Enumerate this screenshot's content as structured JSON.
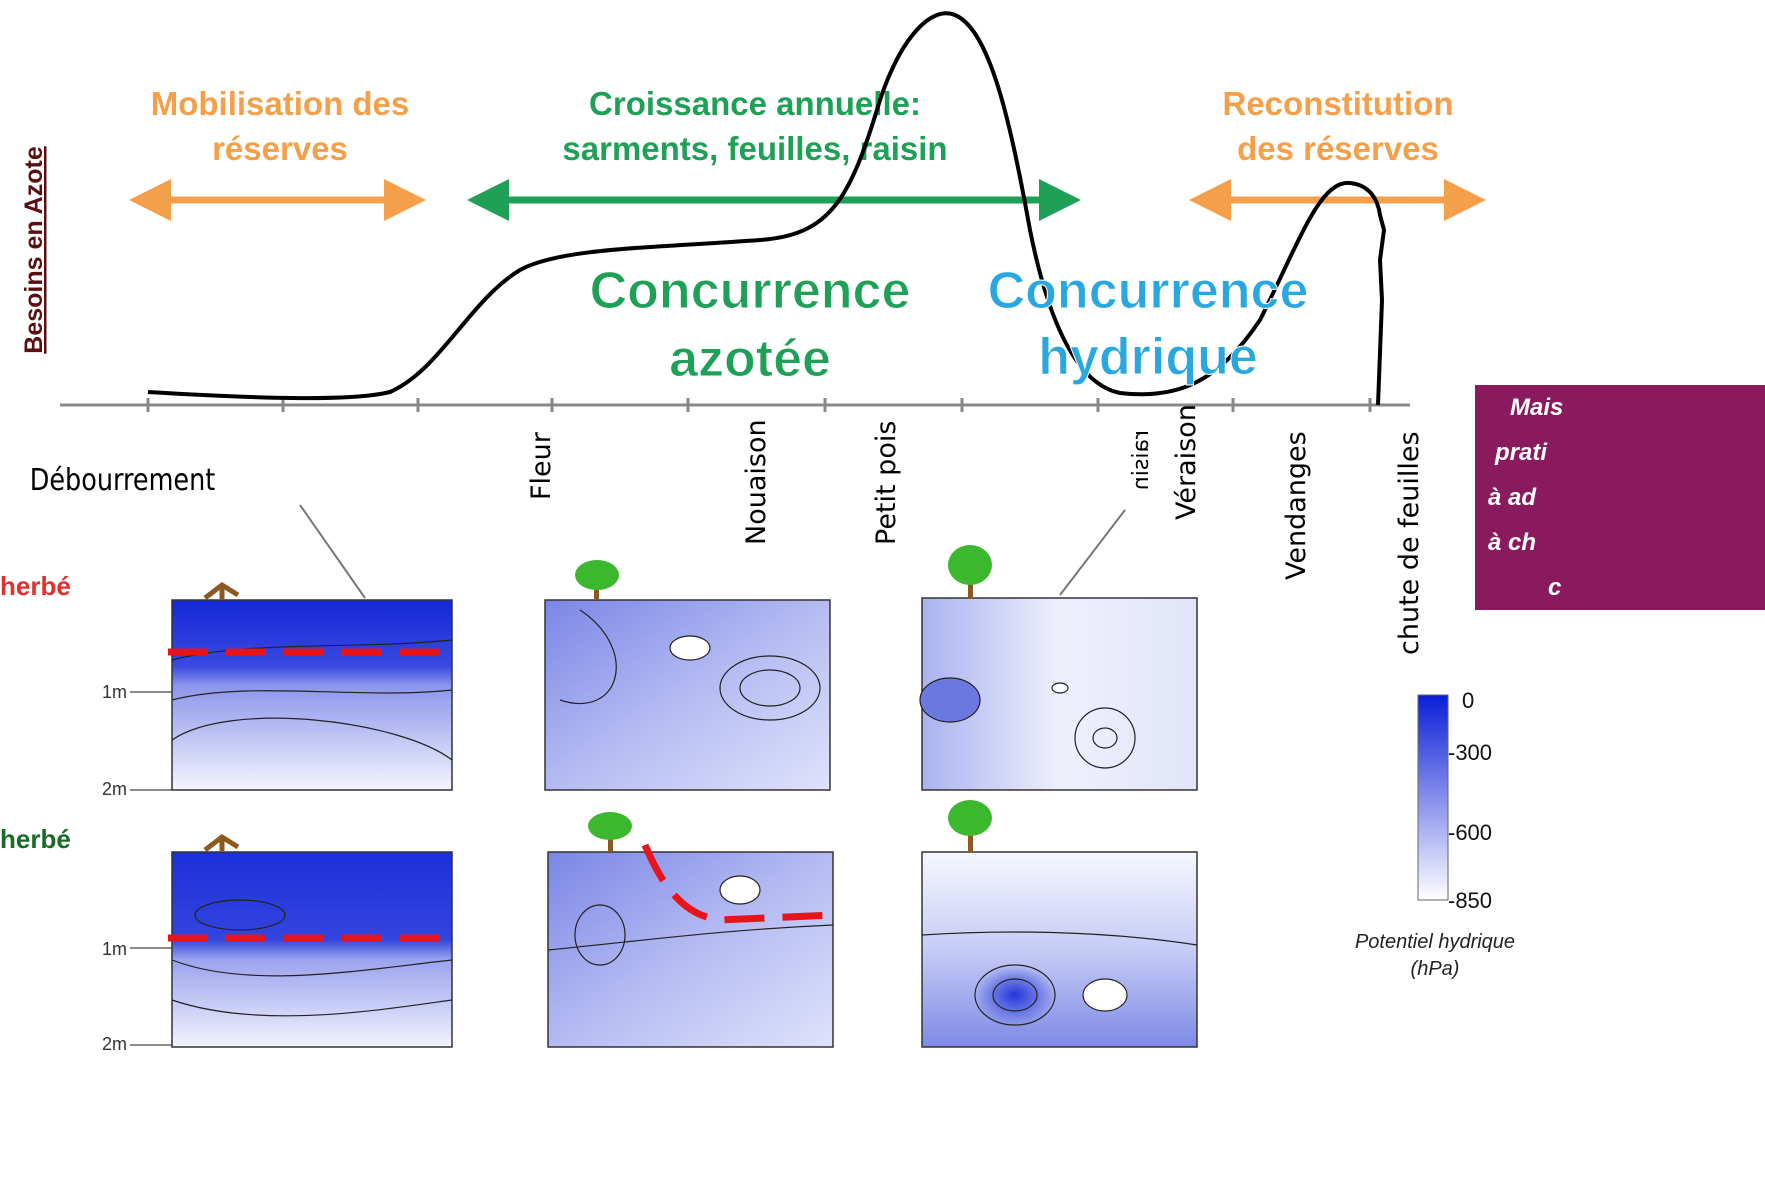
{
  "axis_label": "Besoins en Azote",
  "phases": [
    {
      "lines": [
        "Mobilisation des",
        "réserves"
      ]
    },
    {
      "lines": [
        "Croissance annuelle:",
        "sarments, feuilles, raisin"
      ]
    },
    {
      "lines": [
        "Reconstitution",
        "des réserves"
      ]
    }
  ],
  "competition": [
    {
      "lines": [
        "Concurrence",
        "azotée"
      ]
    },
    {
      "lines": [
        "Concurrence",
        "hydrique"
      ]
    }
  ],
  "stages": [
    "Débourrement",
    "Fleur",
    "Nouaison",
    "Petit pois",
    "raisin",
    "Véraison",
    "Vendanges",
    "chute de feuilles"
  ],
  "rows": [
    {
      "label": "herbé",
      "depths": [
        "1m",
        "2m"
      ]
    },
    {
      "label": "herbé",
      "depths": [
        "1m",
        "2m"
      ]
    }
  ],
  "legend": {
    "ticks": [
      "0",
      "-300",
      "-600",
      "-850"
    ],
    "title": [
      "Potentiel hydrique",
      "(hPa)"
    ]
  },
  "note": {
    "lines": [
      "Mais",
      "prati",
      "à ad",
      "à ch",
      "c"
    ]
  }
}
